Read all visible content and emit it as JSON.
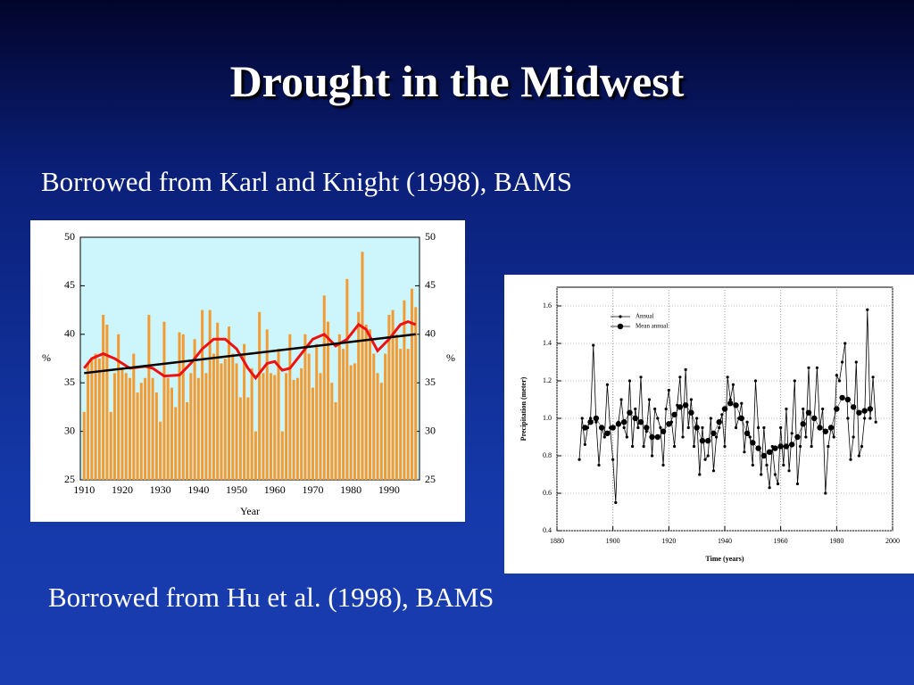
{
  "title": "Drought in the Midwest",
  "caption_top": "Borrowed from Karl and Knight (1998), BAMS",
  "caption_bottom": "Borrowed from Hu et al. (1998), BAMS",
  "chart_data": [
    {
      "type": "bar",
      "x": [
        1910,
        1911,
        1912,
        1913,
        1914,
        1915,
        1916,
        1917,
        1918,
        1919,
        1920,
        1921,
        1922,
        1923,
        1924,
        1925,
        1926,
        1927,
        1928,
        1929,
        1930,
        1931,
        1932,
        1933,
        1934,
        1935,
        1936,
        1937,
        1938,
        1939,
        1940,
        1941,
        1942,
        1943,
        1944,
        1945,
        1946,
        1947,
        1948,
        1949,
        1950,
        1951,
        1952,
        1953,
        1954,
        1955,
        1956,
        1957,
        1958,
        1959,
        1960,
        1961,
        1962,
        1963,
        1964,
        1965,
        1966,
        1967,
        1968,
        1969,
        1970,
        1971,
        1972,
        1973,
        1974,
        1975,
        1976,
        1977,
        1978,
        1979,
        1980,
        1981,
        1982,
        1983,
        1984,
        1985,
        1986,
        1987,
        1988,
        1989,
        1990,
        1991,
        1992,
        1993,
        1994,
        1995,
        1996,
        1997
      ],
      "values": [
        32,
        37,
        37.5,
        38,
        37.5,
        42,
        41,
        32,
        36,
        40,
        36.5,
        36,
        35.5,
        38,
        34,
        35,
        35.5,
        42,
        35.5,
        34,
        31,
        41.3,
        35.5,
        34.5,
        32.5,
        40.2,
        40,
        33,
        36,
        39.5,
        35.5,
        42.5,
        36,
        42.5,
        38,
        41.2,
        37,
        37.5,
        40.8,
        38,
        37,
        33.5,
        39,
        33.5,
        36.5,
        30,
        42.3,
        36,
        40.5,
        36,
        35.8,
        38.5,
        30,
        36,
        40,
        35.3,
        35.5,
        36.5,
        40,
        38,
        34.5,
        39,
        36,
        44,
        41.3,
        35,
        33,
        40,
        38.5,
        45.7,
        36.8,
        37,
        42.3,
        48.5,
        41,
        40.5,
        38,
        36,
        35,
        38,
        42,
        42.5,
        40,
        38.5,
        43.5,
        38.5,
        44.7,
        42.8
      ],
      "color": "#f39a32",
      "overlays": [
        {
          "type": "line",
          "color": "#ee1111",
          "x": [
            1910,
            1912,
            1915,
            1918,
            1922,
            1926,
            1928,
            1931,
            1935,
            1938,
            1941,
            1944,
            1947,
            1950,
            1953,
            1955,
            1958,
            1960,
            1962,
            1964,
            1967,
            1970,
            1973,
            1976,
            1979,
            1982,
            1984,
            1987,
            1990,
            1993,
            1995,
            1997
          ],
          "values": [
            36.5,
            37.5,
            38,
            37.5,
            36.5,
            36.7,
            36.5,
            35.7,
            35.8,
            37,
            38.5,
            39.5,
            39.5,
            38.5,
            36.5,
            35.5,
            37,
            37.2,
            36.3,
            36.5,
            38,
            39.5,
            40,
            38.8,
            39.5,
            41,
            40.5,
            38.3,
            39.5,
            41,
            41.3,
            41
          ]
        },
        {
          "type": "line",
          "color": "#000000",
          "x": [
            1910,
            1997
          ],
          "values": [
            36,
            40
          ]
        }
      ],
      "xlim": [
        1909,
        1998
      ],
      "xticks": [
        1910,
        1920,
        1930,
        1940,
        1950,
        1960,
        1970,
        1980,
        1990
      ],
      "ylim": [
        25,
        50
      ],
      "yticks": [
        25,
        30,
        35,
        40,
        45,
        50
      ],
      "y2lim": [
        25,
        50
      ],
      "y2ticks": [
        25,
        30,
        35,
        40,
        45,
        50
      ],
      "xlabel": "Year",
      "ylabel": "%",
      "y2label": "%",
      "grid": false
    },
    {
      "type": "line",
      "series": [
        {
          "name": "Annual",
          "color": "#000000",
          "x": [
            1888,
            1889,
            1890,
            1891,
            1892,
            1893,
            1894,
            1895,
            1896,
            1897,
            1898,
            1899,
            1900,
            1901,
            1902,
            1903,
            1904,
            1905,
            1906,
            1907,
            1908,
            1909,
            1910,
            1911,
            1912,
            1913,
            1914,
            1915,
            1916,
            1917,
            1918,
            1919,
            1920,
            1921,
            1922,
            1923,
            1924,
            1925,
            1926,
            1927,
            1928,
            1929,
            1930,
            1931,
            1932,
            1933,
            1934,
            1935,
            1936,
            1937,
            1938,
            1939,
            1940,
            1941,
            1942,
            1943,
            1944,
            1945,
            1946,
            1947,
            1948,
            1949,
            1950,
            1951,
            1952,
            1953,
            1954,
            1955,
            1956,
            1957,
            1958,
            1959,
            1960,
            1961,
            1962,
            1963,
            1964,
            1965,
            1966,
            1967,
            1968,
            1969,
            1970,
            1971,
            1972,
            1973,
            1974,
            1975,
            1976,
            1977,
            1978,
            1979,
            1980,
            1981,
            1982,
            1983,
            1984,
            1985,
            1986,
            1987,
            1988,
            1989,
            1990,
            1991,
            1992,
            1993,
            1994
          ],
          "values": [
            0.78,
            1.0,
            0.86,
            0.95,
            1.0,
            1.39,
            0.98,
            0.75,
            0.95,
            0.9,
            1.18,
            0.95,
            0.78,
            0.55,
            0.98,
            1.1,
            0.95,
            0.9,
            1.2,
            0.85,
            1.05,
            0.95,
            1.22,
            0.85,
            0.93,
            1.1,
            0.8,
            1.05,
            1.0,
            0.95,
            0.75,
            1.05,
            1.15,
            0.98,
            0.85,
            1.07,
            1.22,
            0.9,
            1.26,
            0.95,
            1.1,
            0.85,
            1.0,
            0.7,
            0.95,
            0.78,
            0.8,
            1.0,
            0.72,
            0.9,
            0.95,
            1.02,
            0.85,
            1.22,
            1.1,
            1.18,
            0.95,
            1.0,
            1.08,
            0.82,
            0.98,
            0.9,
            0.75,
            1.2,
            0.95,
            0.7,
            0.95,
            0.75,
            0.63,
            0.85,
            0.7,
            0.65,
            0.95,
            0.75,
            1.05,
            0.72,
            0.92,
            1.2,
            0.65,
            0.85,
            1.05,
            0.9,
            1.27,
            0.85,
            1.0,
            1.27,
            0.95,
            1.05,
            0.6,
            0.85,
            0.95,
            0.9,
            1.23,
            1.2,
            1.3,
            1.4,
            1.0,
            0.78,
            0.9,
            1.3,
            0.8,
            0.85,
            1.0,
            1.58,
            1.0,
            1.22,
            0.98
          ]
        },
        {
          "name": "Mean annual",
          "color": "#000000",
          "x": [
            1890,
            1892,
            1894,
            1896,
            1898,
            1900,
            1902,
            1904,
            1906,
            1908,
            1910,
            1912,
            1914,
            1916,
            1918,
            1920,
            1922,
            1924,
            1926,
            1928,
            1930,
            1932,
            1934,
            1936,
            1938,
            1940,
            1942,
            1944,
            1946,
            1948,
            1950,
            1952,
            1954,
            1956,
            1958,
            1960,
            1962,
            1964,
            1966,
            1968,
            1970,
            1972,
            1974,
            1976,
            1978,
            1980,
            1982,
            1984,
            1986,
            1988,
            1990,
            1992
          ],
          "values": [
            0.95,
            0.98,
            1.0,
            0.95,
            0.92,
            0.95,
            0.97,
            0.98,
            1.03,
            1.0,
            0.98,
            0.95,
            0.9,
            0.9,
            0.93,
            0.97,
            1.02,
            1.06,
            1.07,
            1.03,
            0.95,
            0.88,
            0.88,
            0.92,
            0.98,
            1.05,
            1.08,
            1.07,
            1.0,
            0.92,
            0.87,
            0.84,
            0.8,
            0.82,
            0.84,
            0.85,
            0.85,
            0.86,
            0.9,
            0.97,
            1.03,
            1.0,
            0.95,
            0.93,
            0.95,
            1.05,
            1.11,
            1.1,
            1.06,
            1.03,
            1.04,
            1.05
          ]
        }
      ],
      "xlim": [
        1880,
        2000
      ],
      "xticks": [
        1880,
        1900,
        1920,
        1940,
        1960,
        1980,
        2000
      ],
      "ylim": [
        0.4,
        1.7
      ],
      "yticks": [
        0.4,
        0.6,
        0.8,
        {
          "value": 1,
          "label": "1.0"
        },
        1.2,
        1.4,
        1.6
      ],
      "xlabel": "Time (years)",
      "ylabel": "Precipitation (meter)",
      "grid": true,
      "legend": "upper left"
    }
  ]
}
